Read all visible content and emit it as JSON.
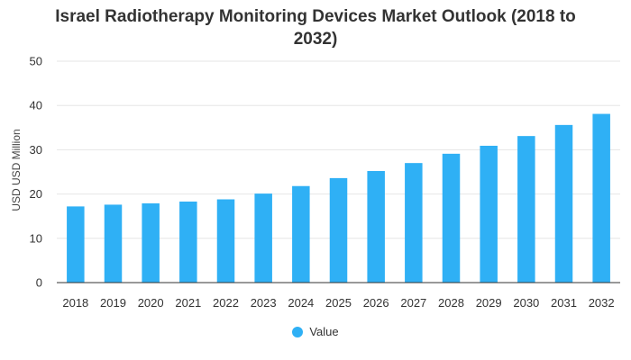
{
  "chart_data": {
    "type": "bar",
    "title": "Israel Radiotherapy Monitoring Devices Market Outlook (2018 to 2032)",
    "xlabel": "",
    "ylabel": "USD USD Million",
    "ylim": [
      0,
      50
    ],
    "yticks": [
      0,
      10,
      20,
      30,
      40,
      50
    ],
    "grid": true,
    "legend_position": "bottom-center",
    "categories": [
      "2018",
      "2019",
      "2020",
      "2021",
      "2022",
      "2023",
      "2024",
      "2025",
      "2026",
      "2027",
      "2028",
      "2029",
      "2030",
      "2031",
      "2032"
    ],
    "series": [
      {
        "name": "Value",
        "color": "#2fb0f5",
        "values": [
          17.2,
          17.6,
          17.9,
          18.3,
          18.8,
          20.1,
          21.8,
          23.6,
          25.2,
          27.0,
          29.1,
          30.9,
          33.1,
          35.6,
          38.1
        ]
      }
    ]
  }
}
